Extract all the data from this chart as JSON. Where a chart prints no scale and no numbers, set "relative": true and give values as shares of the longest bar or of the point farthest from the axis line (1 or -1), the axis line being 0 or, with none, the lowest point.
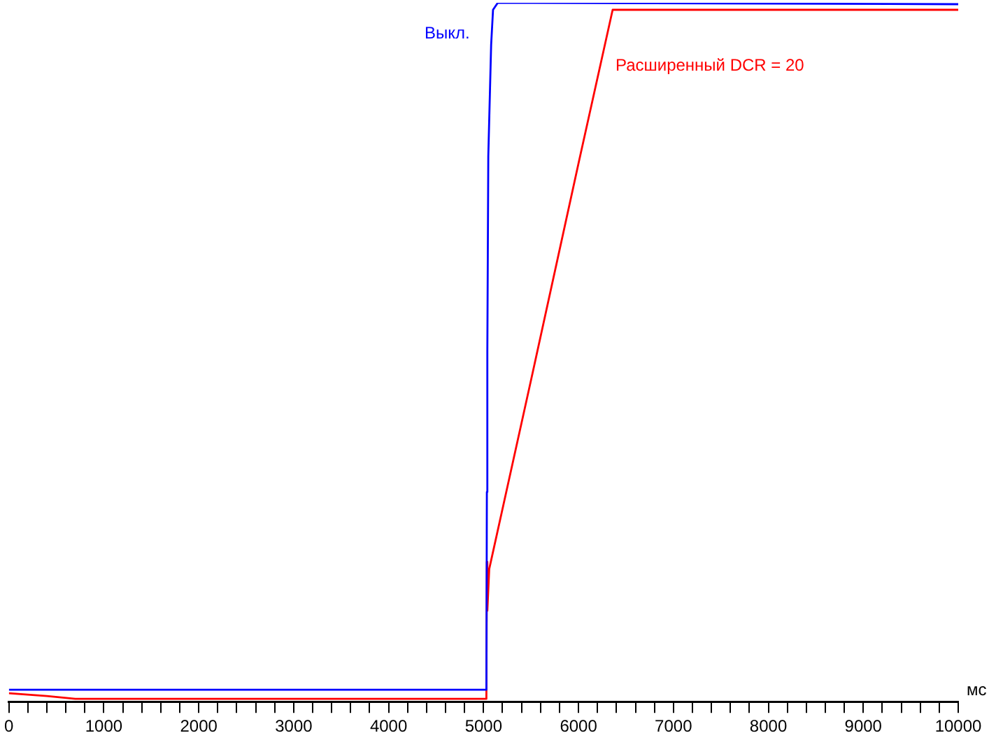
{
  "chart_data": {
    "type": "line",
    "relative": true,
    "xlabel": "мс",
    "xlim": [
      0,
      10000
    ],
    "xticks": [
      0,
      {
        "value": 200,
        "label": null
      },
      {
        "value": 400,
        "label": null
      },
      {
        "value": 600,
        "label": null
      },
      {
        "value": 800,
        "label": null
      },
      1000,
      {
        "value": 1200,
        "label": null
      },
      {
        "value": 1400,
        "label": null
      },
      {
        "value": 1600,
        "label": null
      },
      {
        "value": 1800,
        "label": null
      },
      2000,
      {
        "value": 2200,
        "label": null
      },
      {
        "value": 2400,
        "label": null
      },
      {
        "value": 2600,
        "label": null
      },
      {
        "value": 2800,
        "label": null
      },
      3000,
      {
        "value": 3200,
        "label": null
      },
      {
        "value": 3400,
        "label": null
      },
      {
        "value": 3600,
        "label": null
      },
      {
        "value": 3800,
        "label": null
      },
      4000,
      {
        "value": 4200,
        "label": null
      },
      {
        "value": 4400,
        "label": null
      },
      {
        "value": 4600,
        "label": null
      },
      {
        "value": 4800,
        "label": null
      },
      5000,
      {
        "value": 5200,
        "label": null
      },
      {
        "value": 5400,
        "label": null
      },
      {
        "value": 5600,
        "label": null
      },
      {
        "value": 5800,
        "label": null
      },
      6000,
      {
        "value": 6200,
        "label": null
      },
      {
        "value": 6400,
        "label": null
      },
      {
        "value": 6600,
        "label": null
      },
      {
        "value": 6800,
        "label": null
      },
      7000,
      {
        "value": 7200,
        "label": null
      },
      {
        "value": 7400,
        "label": null
      },
      {
        "value": 7600,
        "label": null
      },
      {
        "value": 7800,
        "label": null
      },
      8000,
      {
        "value": 8200,
        "label": null
      },
      {
        "value": 8400,
        "label": null
      },
      {
        "value": 8600,
        "label": null
      },
      {
        "value": 8800,
        "label": null
      },
      9000,
      {
        "value": 9200,
        "label": null
      },
      {
        "value": 9400,
        "label": null
      },
      {
        "value": 9600,
        "label": null
      },
      {
        "value": 9800,
        "label": null
      },
      10000
    ],
    "grid": false,
    "legend": false,
    "marker": "none",
    "line_style": "solid",
    "series": [
      {
        "name": "Выкл.",
        "color": "#0000ff",
        "x": [
          0,
          5030,
          5035,
          5040,
          5050,
          5080,
          5100,
          5150,
          10000
        ],
        "values": [
          0.017,
          0.017,
          0.3,
          0.5,
          0.78,
          0.94,
          0.99,
          1,
          0.998
        ]
      },
      {
        "name": "Расширенный DCR = 20",
        "color": "#ff0000",
        "x": [
          0,
          200,
          400,
          700,
          5030,
          5035,
          5040,
          5060,
          5500,
          6000,
          6360,
          10000
        ],
        "values": [
          0.012,
          0.01,
          0.008,
          0.004,
          0.004,
          0.2,
          0.13,
          0.19,
          0.46,
          0.77,
          0.99,
          0.99
        ]
      }
    ]
  }
}
